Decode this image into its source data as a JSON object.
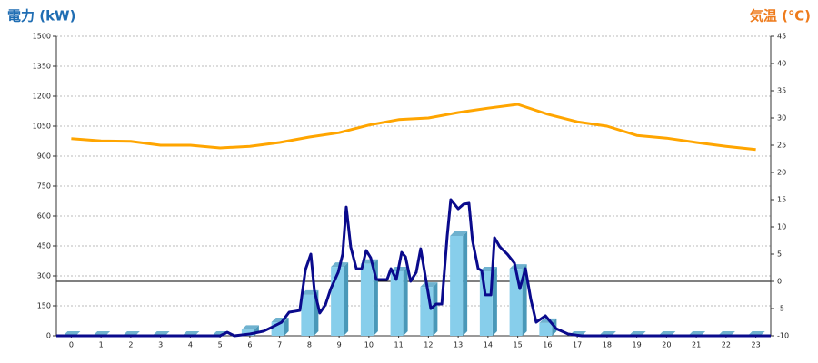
{
  "chart_data": {
    "type": "combo",
    "y_title": "電力 (kW)",
    "y2_title": "気温 (℃)",
    "categories": [
      "0",
      "1",
      "2",
      "3",
      "4",
      "5",
      "6",
      "7",
      "8",
      "9",
      "10",
      "11",
      "12",
      "13",
      "14",
      "15",
      "16",
      "17",
      "18",
      "19",
      "20",
      "21",
      "22",
      "23"
    ],
    "xlim": [
      0,
      24
    ],
    "ylim": [
      0,
      1500
    ],
    "yticks": [
      0,
      150,
      300,
      450,
      600,
      750,
      900,
      1050,
      1200,
      1350,
      1500
    ],
    "y2lim": [
      -10,
      45
    ],
    "y2ticks": [
      -10,
      -5,
      0,
      5,
      10,
      15,
      20,
      25,
      30,
      35,
      40,
      45
    ],
    "grid": true,
    "series": [
      {
        "type": "bar",
        "color": "#87ceeb",
        "values": [
          0,
          0,
          0,
          0,
          0,
          0,
          30,
          68,
          205,
          345,
          360,
          323,
          245,
          500,
          323,
          336,
          64,
          0,
          0,
          0,
          0,
          0,
          0,
          0
        ]
      },
      {
        "type": "line",
        "color": "#0a0a8c",
        "x": [
          0,
          5.5,
          5.74,
          5.98,
          6.5,
          6.96,
          7.27,
          7.57,
          7.82,
          8.03,
          8.18,
          8.37,
          8.55,
          8.67,
          8.85,
          9.04,
          9.22,
          9.47,
          9.62,
          9.74,
          9.89,
          10.08,
          10.26,
          10.41,
          10.56,
          10.75,
          10.93,
          11.11,
          11.24,
          11.42,
          11.6,
          11.73,
          11.9,
          12.09,
          12.24,
          12.4,
          12.58,
          12.76,
          12.95,
          13.13,
          13.25,
          13.5,
          13.68,
          13.86,
          13.98,
          14.17,
          14.29,
          14.41,
          14.6,
          14.72,
          14.9,
          15.15,
          15.39,
          15.57,
          15.76,
          15.94,
          16.12,
          16.43,
          16.79,
          17.19,
          17.65,
          24
        ],
        "values": [
          0,
          0,
          18,
          0,
          9,
          23,
          45,
          68,
          118,
          123,
          127,
          332,
          409,
          227,
          114,
          155,
          236,
          318,
          409,
          645,
          445,
          336,
          336,
          427,
          391,
          282,
          282,
          282,
          336,
          282,
          418,
          395,
          273,
          318,
          436,
          295,
          136,
          159,
          159,
          500,
          682,
          636,
          659,
          664,
          477,
          336,
          327,
          205,
          205,
          491,
          445,
          409,
          364,
          236,
          336,
          182,
          68,
          100,
          36,
          9,
          0,
          0
        ]
      },
      {
        "type": "line",
        "axis": "y2",
        "color": "#ffa500",
        "values": [
          26.2,
          25.8,
          25.7,
          25,
          25,
          24.5,
          24.8,
          25.5,
          26.5,
          27.3,
          28.7,
          29.7,
          30,
          31,
          31.8,
          32.5,
          30.7,
          29.3,
          28.5,
          26.8,
          26.3,
          25.5,
          24.8,
          24.2
        ]
      }
    ]
  }
}
